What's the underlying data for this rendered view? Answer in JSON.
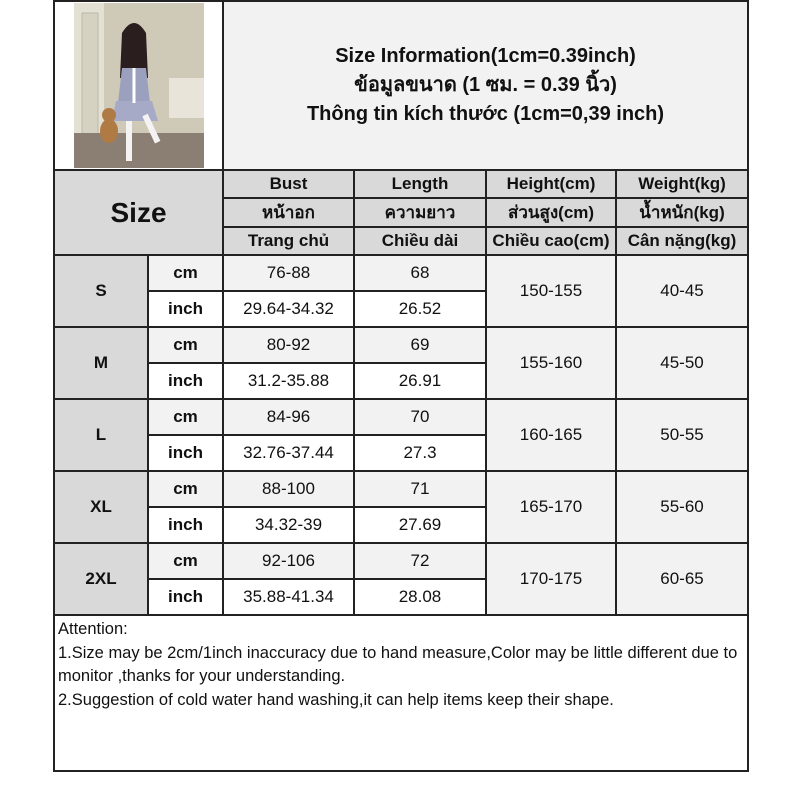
{
  "title_lines": [
    "Size Information(1cm=0.39inch)",
    "ข้อมูลขนาด (1 ซม. = 0.39 นิ้ว)",
    "Thông tin kích thước (1cm=0,39 inch)"
  ],
  "size_header": "Size",
  "columns": [
    {
      "en": "Bust",
      "th": "หน้าอก",
      "vi": "Trang chủ"
    },
    {
      "en": "Length",
      "th": "ความยาว",
      "vi": "Chiều dài"
    },
    {
      "en": "Height(cm)",
      "th": "ส่วนสูง(cm)",
      "vi": "Chiều cao(cm)"
    },
    {
      "en": "Weight(kg)",
      "th": "น้ำหนัก(kg)",
      "vi": "Cân nặng(kg)"
    }
  ],
  "units": {
    "cm": "cm",
    "inch": "inch"
  },
  "rows": [
    {
      "size": "S",
      "bust_cm": "76-88",
      "length_cm": "68",
      "bust_in": "29.64-34.32",
      "length_in": "26.52",
      "height": "150-155",
      "weight": "40-45"
    },
    {
      "size": "M",
      "bust_cm": "80-92",
      "length_cm": "69",
      "bust_in": "31.2-35.88",
      "length_in": "26.91",
      "height": "155-160",
      "weight": "45-50"
    },
    {
      "size": "L",
      "bust_cm": "84-96",
      "length_cm": "70",
      "bust_in": "32.76-37.44",
      "length_in": "27.3",
      "height": "160-165",
      "weight": "50-55"
    },
    {
      "size": "XL",
      "bust_cm": "88-100",
      "length_cm": "71",
      "bust_in": "34.32-39",
      "length_in": "27.69",
      "height": "165-170",
      "weight": "55-60"
    },
    {
      "size": "2XL",
      "bust_cm": "92-106",
      "length_cm": "72",
      "bust_in": "35.88-41.34",
      "length_in": "28.08",
      "height": "170-175",
      "weight": "60-65"
    }
  ],
  "attention": {
    "heading": "Attention:",
    "line1": "1.Size may be 2cm/1inch inaccuracy due to hand measure,Color may be little different due to monitor ,thanks for your understanding.",
    "line2": "2.Suggestion of cold water hand washing,it can help items keep their shape."
  },
  "colors": {
    "header_gray": "#d9d9d9",
    "light_gray": "#f2f2f2",
    "border": "#222222"
  }
}
